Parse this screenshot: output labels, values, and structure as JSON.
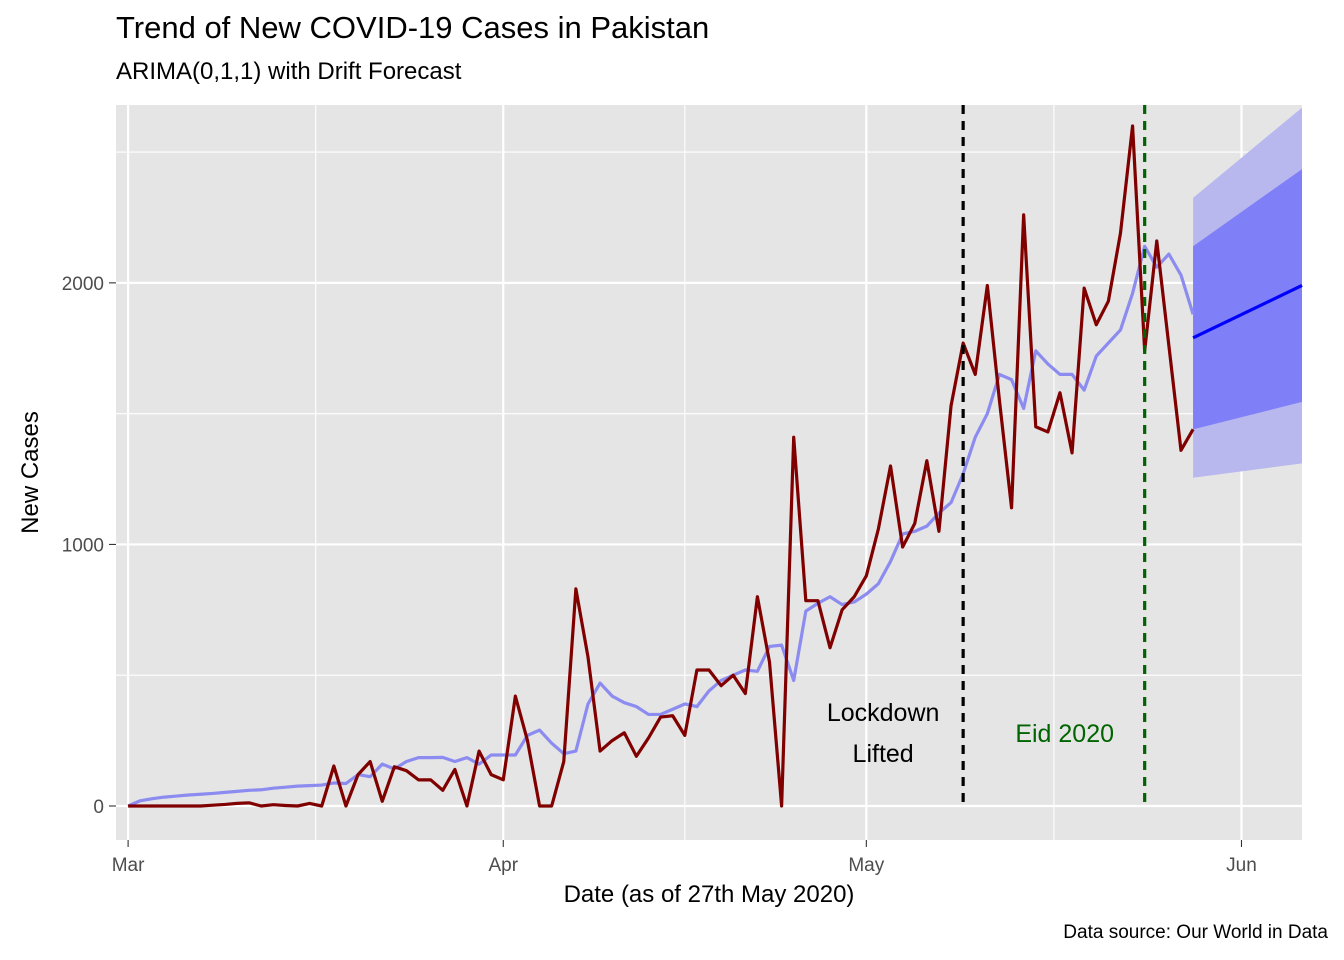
{
  "title": "Trend of New COVID-19 Cases in Pakistan",
  "subtitle": "ARIMA(0,1,1) with Drift Forecast",
  "caption": "Data source: Our World in Data",
  "colors": {
    "panel": "#e5e5e5",
    "grid": "#ffffff",
    "actual": "#800000",
    "fitted": "#8c8cf0",
    "forecast": "#0000ff",
    "band80": "#7f7ff7",
    "band95": "#b8b8ef",
    "lockdown": "#000000",
    "eid": "#006400"
  },
  "chart_data": {
    "type": "line",
    "xlabel": "Date (as of 27th May 2020)",
    "ylabel": "New Cases",
    "x_range": [
      "2020-02-29",
      "2020-06-06"
    ],
    "ylim": [
      -130,
      2680
    ],
    "x_ticks": [
      {
        "date": "2020-03-01",
        "label": "Mar"
      },
      {
        "date": "2020-04-01",
        "label": "Apr"
      },
      {
        "date": "2020-05-01",
        "label": "May"
      },
      {
        "date": "2020-06-01",
        "label": "Jun"
      }
    ],
    "y_ticks": [
      0,
      1000,
      2000
    ],
    "grid": true,
    "start_date": "2020-03-01",
    "series": [
      {
        "key": "actual",
        "values": [
          0,
          0,
          0,
          0,
          0,
          0,
          0,
          3,
          6,
          10,
          12,
          0,
          5,
          2,
          0,
          10,
          0,
          153,
          0,
          120,
          170,
          18,
          150,
          135,
          100,
          100,
          60,
          140,
          0,
          210,
          120,
          100,
          420,
          250,
          0,
          0,
          170,
          830,
          570,
          210,
          250,
          280,
          190,
          260,
          340,
          345,
          270,
          520,
          520,
          460,
          500,
          430,
          800,
          550,
          0,
          1410,
          785,
          785,
          605,
          750,
          800,
          880,
          1060,
          1300,
          990,
          1080,
          1320,
          1050,
          1530,
          1770,
          1650,
          1990,
          1550,
          1140,
          2260,
          1450,
          1430,
          1580,
          1350,
          1980,
          1840,
          1930,
          2190,
          2600,
          1740,
          2160,
          1760,
          1360,
          1440
        ]
      },
      {
        "key": "fitted",
        "values": [
          0,
          20,
          28,
          34,
          38,
          42,
          45,
          48,
          52,
          56,
          60,
          62,
          68,
          72,
          76,
          78,
          80,
          88,
          86,
          120,
          112,
          160,
          142,
          170,
          185,
          185,
          186,
          170,
          185,
          160,
          195,
          195,
          195,
          270,
          290,
          240,
          200,
          210,
          390,
          470,
          420,
          395,
          380,
          350,
          350,
          370,
          390,
          380,
          440,
          480,
          500,
          520,
          515,
          610,
          615,
          480,
          745,
          775,
          800,
          770,
          780,
          810,
          850,
          935,
          1040,
          1050,
          1070,
          1120,
          1160,
          1270,
          1410,
          1500,
          1650,
          1630,
          1520,
          1740,
          1690,
          1650,
          1650,
          1590,
          1720,
          1770,
          1820,
          1960,
          2140,
          2060,
          2110,
          2030,
          1880
        ]
      }
    ],
    "forecast": {
      "start_date": "2020-05-28",
      "end_date": "2020-06-06",
      "mean": [
        1790,
        1990
      ],
      "lo80": [
        1440,
        1545
      ],
      "hi80": [
        2140,
        2435
      ],
      "lo95": [
        1255,
        1310
      ],
      "hi95": [
        2325,
        2670
      ]
    },
    "vlines": [
      {
        "key": "lockdown",
        "date": "2020-05-09",
        "label": "Lockdown\nLifted"
      },
      {
        "key": "eid",
        "date": "2020-05-24",
        "label": "Eid 2020"
      }
    ]
  }
}
